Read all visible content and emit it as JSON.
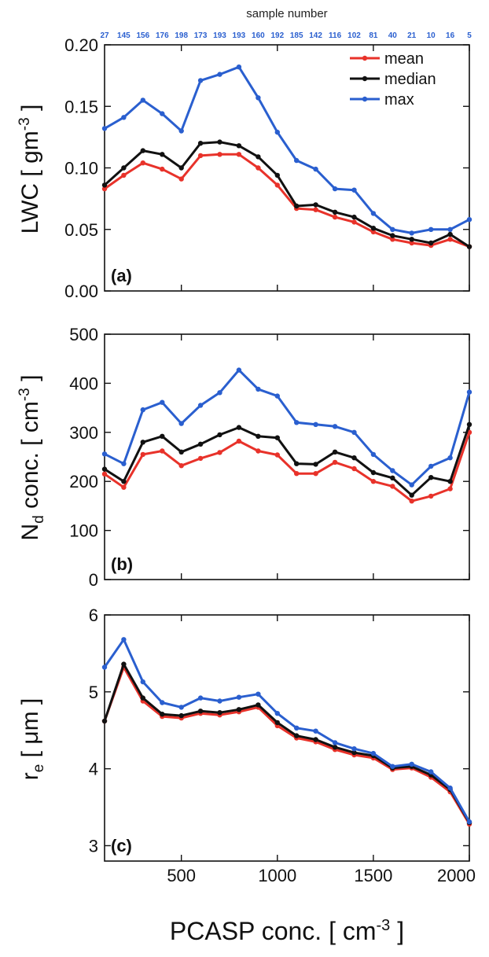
{
  "figure": {
    "top_axis_label": "sample number",
    "sample_numbers": [
      "27",
      "145",
      "156",
      "176",
      "198",
      "173",
      "193",
      "193",
      "160",
      "192",
      "185",
      "142",
      "116",
      "102",
      "81",
      "40",
      "21",
      "10",
      "16",
      "5"
    ],
    "xlabel_main": "PCASP conc. [ cm",
    "xlabel_sup": "-3",
    "xlabel_end": " ]",
    "colors": {
      "mean": "#e8322a",
      "median": "#111111",
      "max": "#2a5fcf",
      "sample_numbers": "#2a5fcf"
    }
  },
  "chart_data": [
    {
      "type": "line",
      "panel_label": "(a)",
      "ylabel_main": "LWC [ gm",
      "ylabel_sup": "-3",
      "ylabel_end": " ]",
      "xlim": [
        100,
        2000
      ],
      "ylim": [
        0,
        0.2
      ],
      "yticks": [
        0,
        0.05,
        0.1,
        0.15,
        0.2
      ],
      "ytick_labels": [
        "0.00",
        "0.05",
        "0.10",
        "0.15",
        "0.20"
      ],
      "xticks": [
        500,
        1000,
        1500,
        2000
      ],
      "xtick_labels": [
        "",
        "",
        "",
        ""
      ],
      "legend_position": "top-right",
      "x": [
        100,
        200,
        300,
        400,
        500,
        600,
        700,
        800,
        900,
        1000,
        1100,
        1200,
        1300,
        1400,
        1500,
        1600,
        1700,
        1800,
        1900,
        2000
      ],
      "series": [
        {
          "name": "mean",
          "values": [
            0.083,
            0.094,
            0.104,
            0.099,
            0.091,
            0.11,
            0.111,
            0.111,
            0.1,
            0.086,
            0.067,
            0.066,
            0.06,
            0.056,
            0.048,
            0.042,
            0.039,
            0.037,
            0.042,
            0.036
          ]
        },
        {
          "name": "median",
          "values": [
            0.086,
            0.1,
            0.114,
            0.111,
            0.1,
            0.12,
            0.121,
            0.118,
            0.109,
            0.094,
            0.069,
            0.07,
            0.064,
            0.06,
            0.051,
            0.045,
            0.042,
            0.039,
            0.046,
            0.036
          ]
        },
        {
          "name": "max",
          "values": [
            0.132,
            0.141,
            0.155,
            0.144,
            0.13,
            0.171,
            0.176,
            0.182,
            0.157,
            0.129,
            0.106,
            0.099,
            0.083,
            0.082,
            0.063,
            0.05,
            0.047,
            0.05,
            0.05,
            0.058
          ]
        }
      ]
    },
    {
      "type": "line",
      "panel_label": "(b)",
      "ylabel_main": "N",
      "ylabel_sub": "d",
      "ylabel_rest": " conc. [ cm",
      "ylabel_sup": "-3",
      "ylabel_end": " ]",
      "xlim": [
        100,
        2000
      ],
      "ylim": [
        0,
        500
      ],
      "yticks": [
        0,
        100,
        200,
        300,
        400,
        500
      ],
      "ytick_labels": [
        "0",
        "100",
        "200",
        "300",
        "400",
        "500"
      ],
      "xticks": [
        500,
        1000,
        1500,
        2000
      ],
      "xtick_labels": [
        "",
        "",
        "",
        ""
      ],
      "x": [
        100,
        200,
        300,
        400,
        500,
        600,
        700,
        800,
        900,
        1000,
        1100,
        1200,
        1300,
        1400,
        1500,
        1600,
        1700,
        1800,
        1900,
        2000
      ],
      "series": [
        {
          "name": "mean",
          "values": [
            215,
            188,
            255,
            262,
            232,
            247,
            259,
            282,
            262,
            254,
            216,
            216,
            239,
            226,
            200,
            190,
            160,
            170,
            185,
            300
          ]
        },
        {
          "name": "median",
          "values": [
            225,
            200,
            280,
            292,
            260,
            276,
            295,
            310,
            292,
            289,
            236,
            235,
            260,
            248,
            218,
            207,
            172,
            208,
            200,
            316
          ]
        },
        {
          "name": "max",
          "values": [
            256,
            236,
            346,
            361,
            318,
            355,
            381,
            427,
            388,
            374,
            320,
            316,
            312,
            300,
            255,
            222,
            193,
            231,
            248,
            382
          ]
        }
      ]
    },
    {
      "type": "line",
      "panel_label": "(c)",
      "ylabel_main": "r",
      "ylabel_sub": "e",
      "ylabel_rest": " [ μm ]",
      "xlim": [
        100,
        2000
      ],
      "ylim": [
        2.8,
        6
      ],
      "yticks": [
        3,
        4,
        5,
        6
      ],
      "ytick_labels": [
        "3",
        "4",
        "5",
        "6"
      ],
      "xticks": [
        500,
        1000,
        1500,
        2000
      ],
      "xtick_labels": [
        "500",
        "1000",
        "1500",
        "2000"
      ],
      "x": [
        100,
        200,
        300,
        400,
        500,
        600,
        700,
        800,
        900,
        1000,
        1100,
        1200,
        1300,
        1400,
        1500,
        1600,
        1700,
        1800,
        1900,
        2000
      ],
      "series": [
        {
          "name": "mean",
          "values": [
            4.62,
            5.32,
            4.88,
            4.68,
            4.66,
            4.72,
            4.7,
            4.74,
            4.8,
            4.56,
            4.4,
            4.35,
            4.25,
            4.18,
            4.14,
            3.99,
            4.01,
            3.89,
            3.7,
            3.28
          ]
        },
        {
          "name": "median",
          "values": [
            4.62,
            5.36,
            4.92,
            4.71,
            4.69,
            4.75,
            4.73,
            4.77,
            4.83,
            4.6,
            4.43,
            4.38,
            4.28,
            4.21,
            4.17,
            4.01,
            4.03,
            3.92,
            3.73,
            3.3
          ]
        },
        {
          "name": "max",
          "values": [
            5.32,
            5.68,
            5.13,
            4.86,
            4.8,
            4.92,
            4.88,
            4.93,
            4.97,
            4.72,
            4.53,
            4.49,
            4.34,
            4.26,
            4.2,
            4.03,
            4.06,
            3.96,
            3.75,
            3.31
          ]
        }
      ]
    }
  ]
}
